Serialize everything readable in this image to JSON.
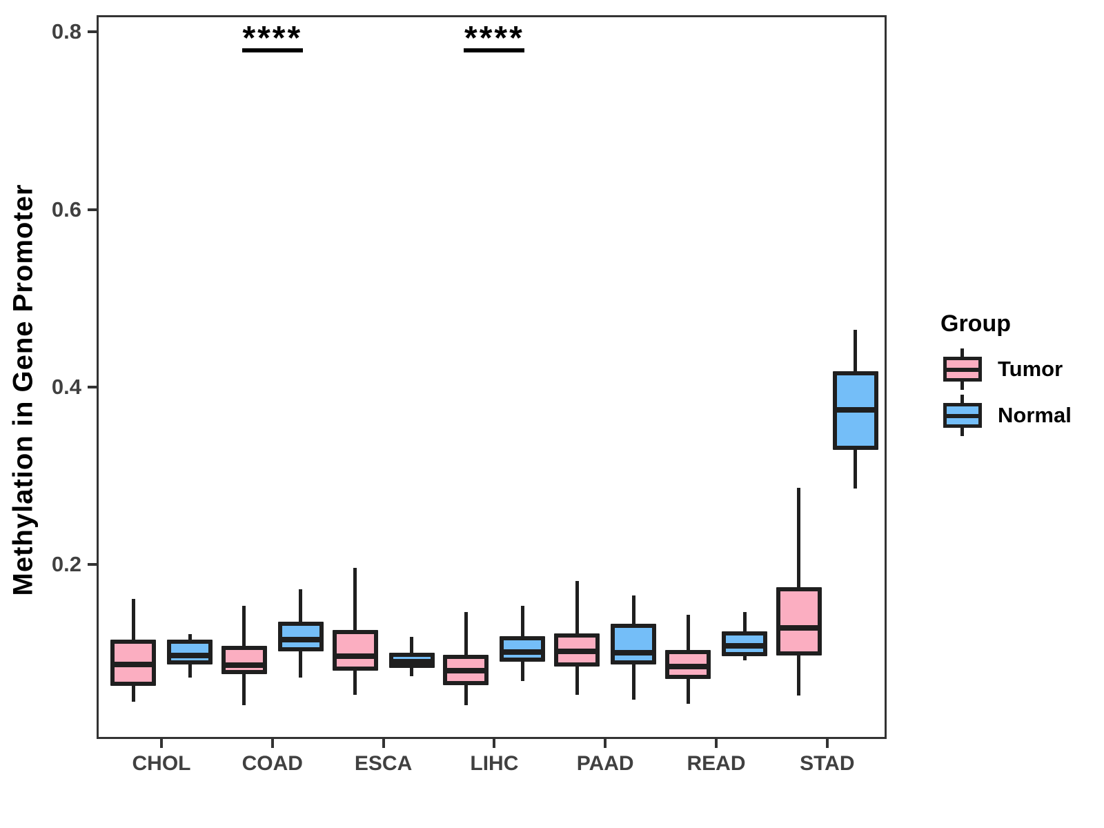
{
  "figure": {
    "legend": {
      "title": "Group",
      "entries": [
        {
          "label": "Tumor",
          "color": "#FBAEC1"
        },
        {
          "label": "Normal",
          "color": "#74BEF8"
        }
      ]
    }
  },
  "chart_data": {
    "type": "boxplot",
    "title": "",
    "xlabel": "",
    "ylabel": "Methylation in Gene Promoter",
    "ylim": [
      0,
      0.82
    ],
    "grid": false,
    "legend_position": "right",
    "y_ticks": [
      {
        "value": 0.8,
        "label": "0.8"
      },
      {
        "value": 0.6,
        "label": "0.6"
      },
      {
        "value": 0.4,
        "label": "0.4"
      },
      {
        "value": 0.2,
        "label": "0.2"
      }
    ],
    "categories": [
      "CHOL",
      "COAD",
      "ESCA",
      "LIHC",
      "PAAD",
      "READ",
      "STAD"
    ],
    "series": [
      {
        "name": "Tumor",
        "fill": "#FBAEC1",
        "values": [
          {
            "min": 0.045,
            "q1": 0.063,
            "median": 0.087,
            "q3": 0.115,
            "max": 0.161
          },
          {
            "min": 0.041,
            "q1": 0.076,
            "median": 0.086,
            "q3": 0.108,
            "max": 0.153
          },
          {
            "min": 0.053,
            "q1": 0.08,
            "median": 0.096,
            "q3": 0.126,
            "max": 0.196
          },
          {
            "min": 0.041,
            "q1": 0.064,
            "median": 0.08,
            "q3": 0.098,
            "max": 0.146
          },
          {
            "min": 0.053,
            "q1": 0.085,
            "median": 0.102,
            "q3": 0.122,
            "max": 0.181
          },
          {
            "min": 0.043,
            "q1": 0.071,
            "median": 0.085,
            "q3": 0.103,
            "max": 0.143
          },
          {
            "min": 0.052,
            "q1": 0.097,
            "median": 0.128,
            "q3": 0.174,
            "max": 0.286
          }
        ]
      },
      {
        "name": "Normal",
        "fill": "#74BEF8",
        "values": [
          {
            "min": 0.072,
            "q1": 0.087,
            "median": 0.097,
            "q3": 0.115,
            "max": 0.121
          },
          {
            "min": 0.072,
            "q1": 0.102,
            "median": 0.115,
            "q3": 0.135,
            "max": 0.172
          },
          {
            "min": 0.074,
            "q1": 0.083,
            "median": 0.09,
            "q3": 0.1,
            "max": 0.118
          },
          {
            "min": 0.068,
            "q1": 0.09,
            "median": 0.101,
            "q3": 0.119,
            "max": 0.153
          },
          {
            "min": 0.047,
            "q1": 0.087,
            "median": 0.1,
            "q3": 0.133,
            "max": 0.165
          },
          {
            "min": 0.092,
            "q1": 0.096,
            "median": 0.108,
            "q3": 0.124,
            "max": 0.146
          },
          {
            "min": 0.285,
            "q1": 0.329,
            "median": 0.374,
            "q3": 0.418,
            "max": 0.464
          }
        ]
      }
    ],
    "annotations": [
      {
        "category": "COAD",
        "label": "****"
      },
      {
        "category": "LIHC",
        "label": "****"
      }
    ]
  }
}
